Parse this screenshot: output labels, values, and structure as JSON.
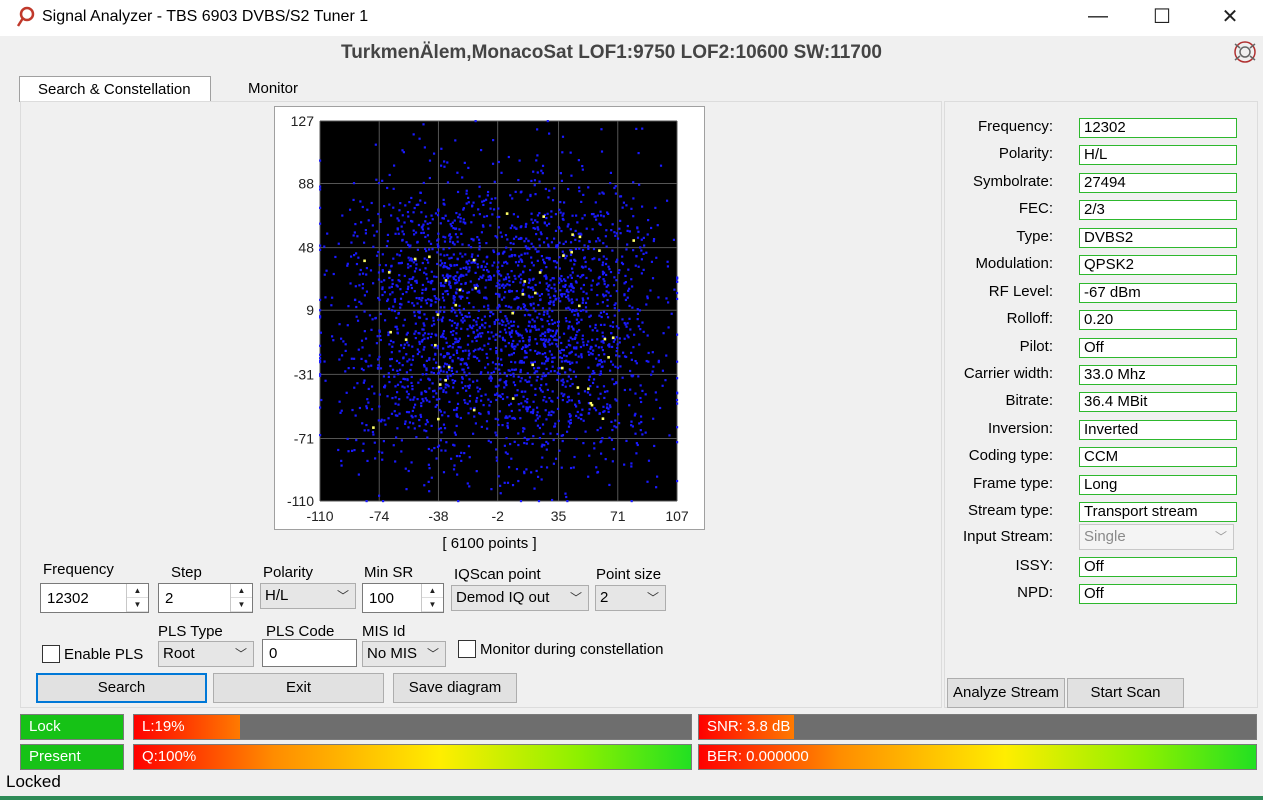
{
  "window": {
    "title": "Signal Analyzer - TBS 6903 DVBS/S2 Tuner 1",
    "subtitle": "TurkmenÄlem,MonacoSat LOF1:9750 LOF2:10600 SW:11700",
    "minimize": "—",
    "maximize": "☐",
    "close": "✕"
  },
  "tabs": [
    "Search & Constellation",
    "Monitor"
  ],
  "chart_data": {
    "type": "scatter",
    "title": "",
    "points_label": "[ 6100 points ]",
    "point_count": 6100,
    "x_ticks": [
      -110,
      -74,
      -38,
      -2,
      35,
      71,
      107
    ],
    "y_ticks": [
      127,
      88,
      48,
      9,
      -31,
      -71,
      -110
    ],
    "xlim": [
      -110,
      107
    ],
    "ylim": [
      -110,
      127
    ],
    "grid": true,
    "background": "#000000",
    "point_color": "#1a1aff",
    "highlight_color": "#ffff66",
    "cluster_centers": [
      [
        -38,
        35
      ],
      [
        35,
        35
      ],
      [
        -38,
        -31
      ],
      [
        35,
        -31
      ]
    ]
  },
  "controls": {
    "frequency": {
      "label": "Frequency",
      "value": "12302"
    },
    "step": {
      "label": "Step",
      "value": "2"
    },
    "polarity": {
      "label": "Polarity",
      "value": "H/L"
    },
    "min_sr": {
      "label": "Min SR",
      "value": "100"
    },
    "iqscan": {
      "label": "IQScan point",
      "value": "Demod IQ out"
    },
    "point_size": {
      "label": "Point size",
      "value": "2"
    },
    "enable_pls": {
      "label": "Enable PLS",
      "checked": false
    },
    "pls_type": {
      "label": "PLS Type",
      "value": "Root"
    },
    "pls_code": {
      "label": "PLS Code",
      "value": "0"
    },
    "mis_id": {
      "label": "MIS Id",
      "value": "No MIS"
    },
    "monitor_during": {
      "label": "Monitor during constellation",
      "checked": false
    }
  },
  "buttons": {
    "search": "Search",
    "exit": "Exit",
    "save_diagram": "Save diagram",
    "analyze_stream": "Analyze Stream",
    "start_scan": "Start Scan"
  },
  "info": [
    {
      "label": "Frequency:",
      "value": "12302"
    },
    {
      "label": "Polarity:",
      "value": "H/L"
    },
    {
      "label": "Symbolrate:",
      "value": "27494"
    },
    {
      "label": "FEC:",
      "value": "2/3"
    },
    {
      "label": "Type:",
      "value": "DVBS2"
    },
    {
      "label": "Modulation:",
      "value": "QPSK2"
    },
    {
      "label": "RF Level:",
      "value": "-67 dBm"
    },
    {
      "label": "Rolloff:",
      "value": "0.20"
    },
    {
      "label": "Pilot:",
      "value": "Off"
    },
    {
      "label": "Carrier width:",
      "value": "33.0 Mhz"
    },
    {
      "label": "Bitrate:",
      "value": "36.4 MBit"
    },
    {
      "label": "Inversion:",
      "value": "Inverted"
    },
    {
      "label": "Coding type:",
      "value": "CCM"
    },
    {
      "label": "Frame type:",
      "value": "Long"
    },
    {
      "label": "Stream type:",
      "value": "Transport stream"
    },
    {
      "label": "Input Stream:",
      "value": "Single"
    },
    {
      "label": "ISSY:",
      "value": "Off"
    },
    {
      "label": "NPD:",
      "value": "Off"
    }
  ],
  "status": {
    "lock": "Lock",
    "present": "Present",
    "level": {
      "text": "L:19%",
      "percent": 19
    },
    "quality": {
      "text": "Q:100%",
      "percent": 100
    },
    "snr": {
      "text": "SNR: 3.8 dB",
      "percent": 17
    },
    "ber": {
      "text": "BER: 0.000000",
      "percent": 100
    },
    "footer": "Locked"
  }
}
